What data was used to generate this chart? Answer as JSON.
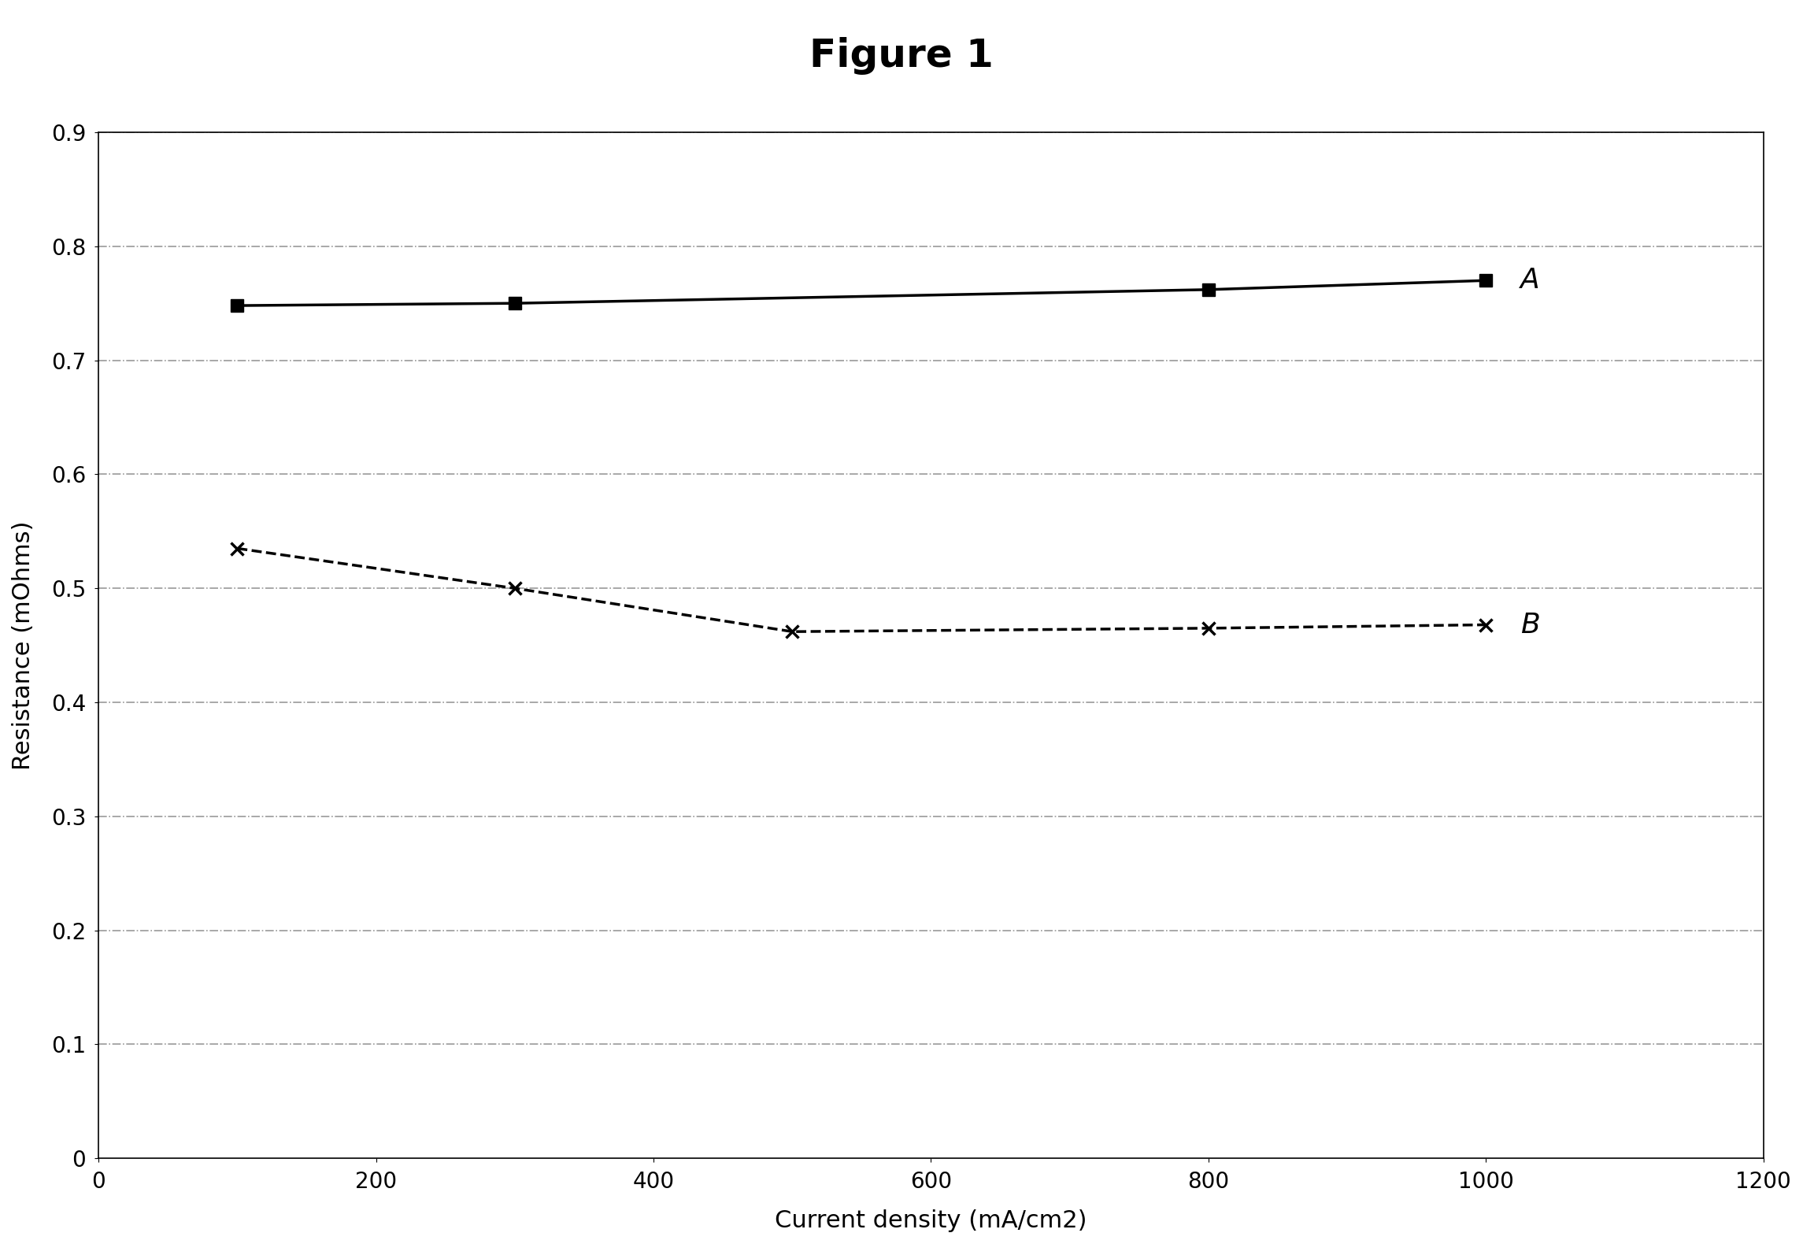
{
  "title": "Figure 1",
  "xlabel": "Current density (mA/cm2)",
  "ylabel": "Resistance (mOhms)",
  "xlim": [
    0,
    1200
  ],
  "ylim": [
    0,
    0.9
  ],
  "xticks": [
    0,
    200,
    400,
    600,
    800,
    1000,
    1200
  ],
  "yticks": [
    0,
    0.1,
    0.2,
    0.3,
    0.4,
    0.5,
    0.6,
    0.7,
    0.8,
    0.9
  ],
  "series_A": {
    "x": [
      100,
      300,
      800,
      1000
    ],
    "y": [
      0.748,
      0.75,
      0.762,
      0.77
    ],
    "label": "A",
    "color": "#000000",
    "linestyle": "-",
    "linewidth": 2.5,
    "marker": "s",
    "markersize": 12,
    "markerfacecolor": "#000000",
    "markeredgecolor": "#000000"
  },
  "series_B": {
    "x": [
      100,
      300,
      500,
      800,
      1000
    ],
    "y": [
      0.535,
      0.5,
      0.462,
      0.465,
      0.468
    ],
    "label": "B",
    "color": "#000000",
    "linestyle": "--",
    "linewidth": 2.5,
    "marker": "x",
    "markersize": 12,
    "markerfacecolor": "#000000",
    "markeredgecolor": "#000000",
    "markeredgewidth": 2.5
  },
  "background_color": "#ffffff",
  "grid_color": "#999999",
  "grid_linestyle": "-.",
  "grid_linewidth": 1.2,
  "title_fontsize": 36,
  "label_fontsize": 22,
  "tick_fontsize": 20,
  "annotation_fontsize": 26,
  "figwidth": 22.9,
  "figheight": 15.8,
  "dpi": 100
}
